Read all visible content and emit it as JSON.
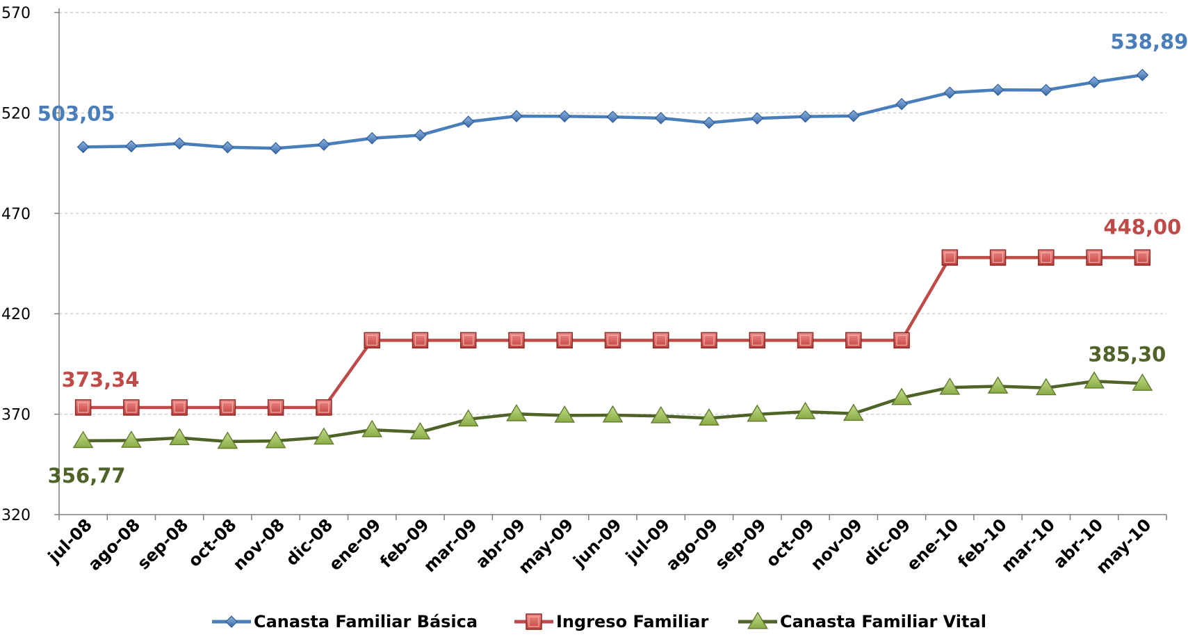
{
  "chart_data": {
    "type": "line",
    "title": "",
    "xlabel": "",
    "ylabel": "",
    "ylim": [
      320,
      570
    ],
    "yticks": [
      320,
      370,
      420,
      470,
      520,
      570
    ],
    "y_tick_labels": [
      "320",
      "370",
      "420",
      "470",
      "520",
      "570"
    ],
    "grid": "horizontal dashed",
    "legend_position": "bottom",
    "categories": [
      "jul-08",
      "ago-08",
      "sep-08",
      "oct-08",
      "nov-08",
      "dic-08",
      "ene-09",
      "feb-09",
      "mar-09",
      "abr-09",
      "may-09",
      "jun-09",
      "jul-09",
      "ago-09",
      "sep-09",
      "oct-09",
      "nov-09",
      "dic-09",
      "ene-10",
      "feb-10",
      "mar-10",
      "abr-10",
      "may-10"
    ],
    "series": [
      {
        "name": "Canasta Familiar Básica",
        "color": "#4a7ebb",
        "marker": "diamond",
        "values": [
          503.05,
          503.4,
          504.8,
          502.9,
          502.4,
          504.2,
          507.4,
          508.9,
          515.6,
          518.4,
          518.3,
          518.0,
          517.4,
          515.1,
          517.3,
          518.2,
          518.5,
          524.4,
          530.1,
          531.5,
          531.4,
          535.3,
          538.89
        ],
        "labels": [
          {
            "index": 0,
            "text": "503,05"
          },
          {
            "index": 22,
            "text": "538,89"
          }
        ]
      },
      {
        "name": "Ingreso Familiar",
        "color": "#be4b48",
        "marker": "square",
        "values": [
          373.34,
          373.34,
          373.34,
          373.34,
          373.34,
          373.34,
          406.8,
          406.8,
          406.8,
          406.8,
          406.8,
          406.8,
          406.8,
          406.8,
          406.8,
          406.8,
          406.8,
          406.8,
          448.0,
          448.0,
          448.0,
          448.0,
          448.0
        ],
        "labels": [
          {
            "index": 0,
            "text": "373,34"
          },
          {
            "index": 22,
            "text": "448,00"
          }
        ]
      },
      {
        "name": "Canasta Familiar Vital",
        "color": "#4f6228",
        "marker_fill": "#9bbb59",
        "marker": "triangle",
        "values": [
          356.77,
          356.9,
          358.2,
          356.4,
          356.7,
          358.5,
          362.2,
          361.1,
          367.5,
          370.1,
          369.4,
          369.5,
          369.1,
          368.0,
          369.9,
          371.2,
          370.3,
          378.2,
          383.3,
          383.9,
          383.1,
          386.4,
          385.3
        ],
        "labels": [
          {
            "index": 0,
            "text": "356,77"
          },
          {
            "index": 22,
            "text": "385,30"
          }
        ]
      }
    ]
  }
}
